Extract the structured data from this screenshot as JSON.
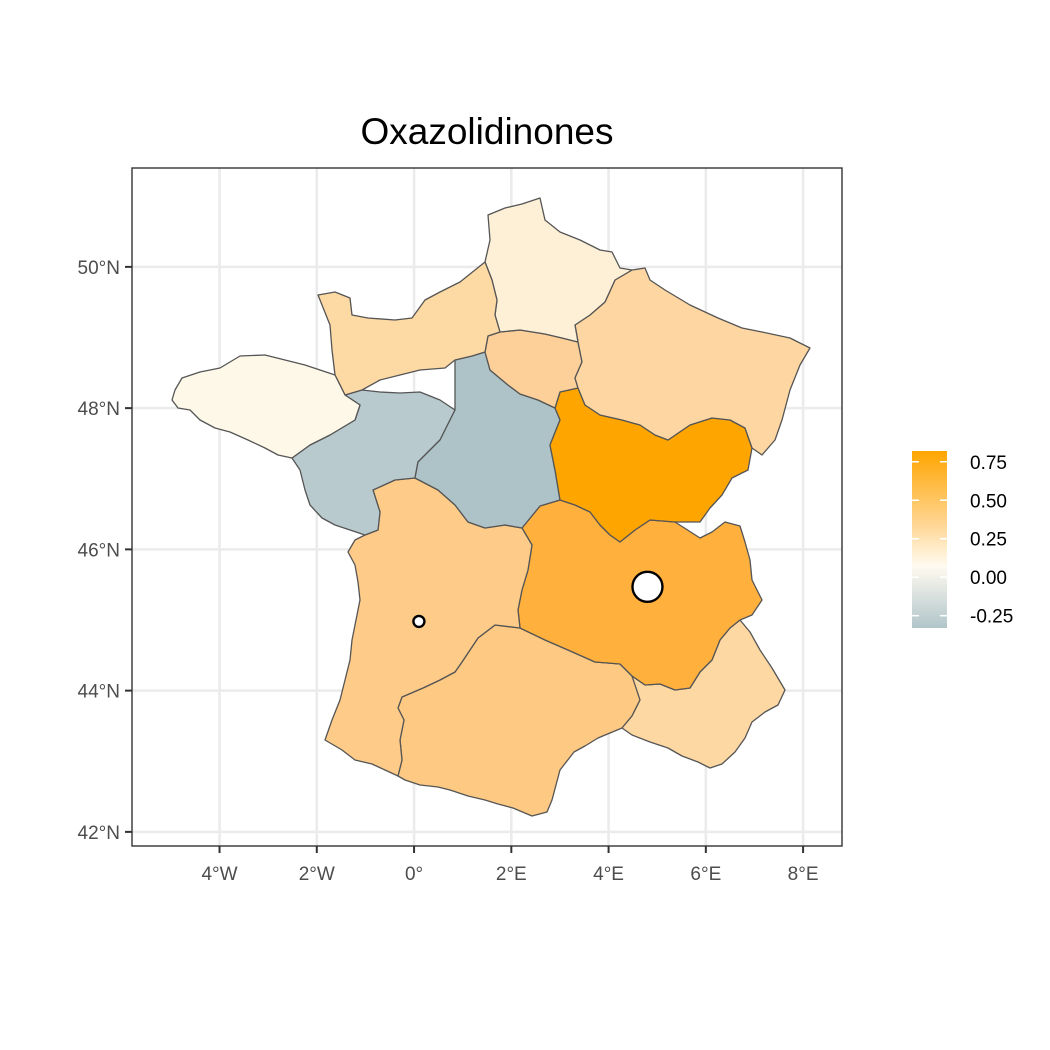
{
  "title": "Oxazolidinones",
  "map": {
    "lon_range": [
      -5.8,
      8.8
    ],
    "lat_range": [
      41.8,
      51.4
    ],
    "x_ticks": [
      {
        "value": -4,
        "label": "4°W"
      },
      {
        "value": -2,
        "label": "2°W"
      },
      {
        "value": 0,
        "label": "0°"
      },
      {
        "value": 2,
        "label": "2°E"
      },
      {
        "value": 4,
        "label": "4°E"
      },
      {
        "value": 6,
        "label": "6°E"
      },
      {
        "value": 8,
        "label": "8°E"
      }
    ],
    "y_ticks": [
      {
        "value": 42,
        "label": "42°N"
      },
      {
        "value": 44,
        "label": "44°N"
      },
      {
        "value": 46,
        "label": "46°N"
      },
      {
        "value": 48,
        "label": "48°N"
      },
      {
        "value": 50,
        "label": "50°N"
      }
    ],
    "region_colors": {
      "bretagne": "#fdf8e8",
      "normandie": "#fdd9a4",
      "hauts_de_france": "#fdf0d6",
      "ile_de_france": "#fdd09a",
      "grand_est": "#fdd6a1",
      "pays_de_la_loire": "#b9cace",
      "centre_val_de_loire": "#aec3c8",
      "bourgogne_franche_comte": "#ffa500",
      "nouvelle_aquitaine": "#fecb88",
      "auvergne_rhone_alpes": "#ffb03d",
      "occitanie": "#fec982",
      "provence_alpes_cote_dazur": "#fed8a2"
    },
    "markers": [
      {
        "name": "site-large",
        "lon": 4.8,
        "lat": 45.47,
        "size": "large"
      },
      {
        "name": "site-small",
        "lon": 0.1,
        "lat": 44.98,
        "size": "small"
      }
    ]
  },
  "legend": {
    "colors": [
      "#b1c5ca",
      "#fffbf0",
      "#ffd48e",
      "#ffa500"
    ],
    "stops": [
      0,
      0.35,
      0.6,
      1
    ],
    "range": [
      -0.33,
      0.82
    ],
    "ticks": [
      {
        "value": 0.75,
        "label": "0.75"
      },
      {
        "value": 0.5,
        "label": "0.50"
      },
      {
        "value": 0.25,
        "label": "0.25"
      },
      {
        "value": 0.0,
        "label": "0.00"
      },
      {
        "value": -0.25,
        "label": "-0.25"
      }
    ]
  }
}
